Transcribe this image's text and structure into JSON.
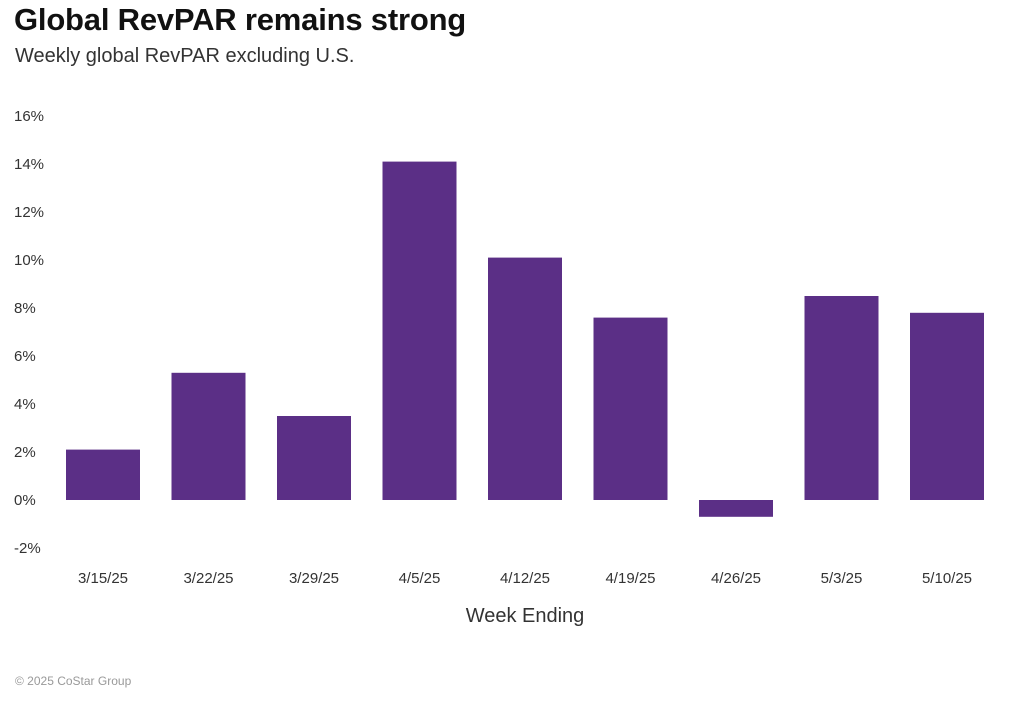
{
  "title": "Global RevPAR remains strong",
  "subtitle": "Weekly global RevPAR excluding U.S.",
  "footer": "© 2025 CoStar Group",
  "chart_data": {
    "type": "bar",
    "title": "Global RevPAR remains strong",
    "subtitle": "Weekly global RevPAR excluding U.S.",
    "xlabel": "Week Ending",
    "ylabel": "",
    "categories": [
      "3/15/25",
      "3/22/25",
      "3/29/25",
      "4/5/25",
      "4/12/25",
      "4/19/25",
      "4/26/25",
      "5/3/25",
      "5/10/25"
    ],
    "values": [
      2.1,
      5.3,
      3.5,
      14.1,
      10.1,
      7.6,
      -0.7,
      8.5,
      7.8
    ],
    "ylim": [
      -2,
      16
    ],
    "yticks": [
      -2,
      0,
      2,
      4,
      6,
      8,
      10,
      12,
      14,
      16
    ],
    "ytick_labels": [
      "-2%",
      "0%",
      "2%",
      "4%",
      "6%",
      "8%",
      "10%",
      "12%",
      "14%",
      "16%"
    ],
    "bar_color": "#5b2f86",
    "grid": false,
    "legend": "none"
  }
}
